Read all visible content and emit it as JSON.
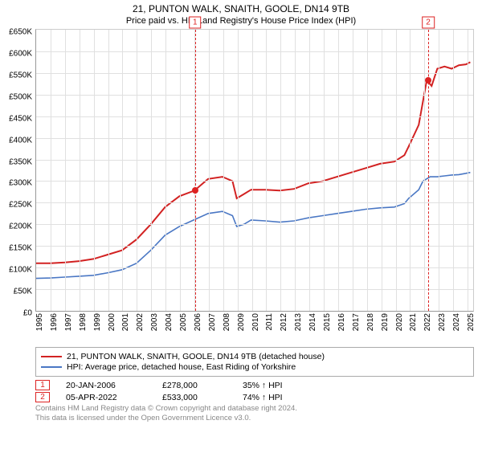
{
  "title": "21, PUNTON WALK, SNAITH, GOOLE, DN14 9TB",
  "subtitle": "Price paid vs. HM Land Registry's House Price Index (HPI)",
  "chart": {
    "type": "line",
    "x_domain": [
      1995,
      2025.5
    ],
    "y_domain": [
      0,
      650000
    ],
    "y_ticks": [
      0,
      50000,
      100000,
      150000,
      200000,
      250000,
      300000,
      350000,
      400000,
      450000,
      500000,
      550000,
      600000,
      650000
    ],
    "y_tick_labels": [
      "£0",
      "£50K",
      "£100K",
      "£150K",
      "£200K",
      "£250K",
      "£300K",
      "£350K",
      "£400K",
      "£450K",
      "£500K",
      "£550K",
      "£600K",
      "£650K"
    ],
    "x_ticks": [
      1995,
      1996,
      1997,
      1998,
      1999,
      2000,
      2001,
      2002,
      2003,
      2004,
      2005,
      2006,
      2007,
      2008,
      2009,
      2010,
      2011,
      2012,
      2013,
      2014,
      2015,
      2016,
      2017,
      2018,
      2019,
      2020,
      2021,
      2022,
      2023,
      2024,
      2025
    ],
    "x_tick_labels": [
      "1995",
      "1996",
      "1997",
      "1998",
      "1999",
      "2000",
      "2001",
      "2002",
      "2003",
      "2004",
      "2005",
      "2006",
      "2007",
      "2008",
      "2009",
      "2010",
      "2011",
      "2012",
      "2013",
      "2014",
      "2015",
      "2016",
      "2017",
      "2018",
      "2019",
      "2020",
      "2021",
      "2022",
      "2023",
      "2024",
      "2025"
    ],
    "grid_color": "#e0e0e0",
    "background_color": "#ffffff",
    "axis_color": "#999999",
    "font_size_ticks": 10,
    "series": [
      {
        "name": "price_paid",
        "label": "21, PUNTON WALK, SNAITH, GOOLE, DN14 9TB (detached house)",
        "color": "#d22222",
        "line_width": 2,
        "points": [
          [
            1995,
            110000
          ],
          [
            1996,
            110000
          ],
          [
            1997,
            112000
          ],
          [
            1998,
            115000
          ],
          [
            1999,
            120000
          ],
          [
            2000,
            130000
          ],
          [
            2001,
            140000
          ],
          [
            2002,
            165000
          ],
          [
            2003,
            200000
          ],
          [
            2004,
            240000
          ],
          [
            2005,
            265000
          ],
          [
            2006.05,
            278000
          ],
          [
            2007,
            305000
          ],
          [
            2008,
            310000
          ],
          [
            2008.7,
            300000
          ],
          [
            2009,
            260000
          ],
          [
            2009.5,
            270000
          ],
          [
            2010,
            280000
          ],
          [
            2011,
            280000
          ],
          [
            2012,
            278000
          ],
          [
            2013,
            282000
          ],
          [
            2014,
            295000
          ],
          [
            2015,
            300000
          ],
          [
            2016,
            310000
          ],
          [
            2017,
            320000
          ],
          [
            2018,
            330000
          ],
          [
            2019,
            340000
          ],
          [
            2020,
            345000
          ],
          [
            2020.7,
            360000
          ],
          [
            2021,
            380000
          ],
          [
            2021.7,
            430000
          ],
          [
            2022.26,
            533000
          ],
          [
            2022.6,
            520000
          ],
          [
            2023,
            560000
          ],
          [
            2023.5,
            565000
          ],
          [
            2024,
            560000
          ],
          [
            2024.5,
            568000
          ],
          [
            2025,
            570000
          ],
          [
            2025.3,
            575000
          ]
        ]
      },
      {
        "name": "hpi",
        "label": "HPI: Average price, detached house, East Riding of Yorkshire",
        "color": "#4a77c4",
        "line_width": 1.6,
        "points": [
          [
            1995,
            75000
          ],
          [
            1996,
            76000
          ],
          [
            1997,
            78000
          ],
          [
            1998,
            80000
          ],
          [
            1999,
            82000
          ],
          [
            2000,
            88000
          ],
          [
            2001,
            95000
          ],
          [
            2002,
            110000
          ],
          [
            2003,
            140000
          ],
          [
            2004,
            175000
          ],
          [
            2005,
            195000
          ],
          [
            2006,
            210000
          ],
          [
            2007,
            225000
          ],
          [
            2008,
            230000
          ],
          [
            2008.7,
            220000
          ],
          [
            2009,
            195000
          ],
          [
            2009.5,
            200000
          ],
          [
            2010,
            210000
          ],
          [
            2011,
            208000
          ],
          [
            2012,
            205000
          ],
          [
            2013,
            208000
          ],
          [
            2014,
            215000
          ],
          [
            2015,
            220000
          ],
          [
            2016,
            225000
          ],
          [
            2017,
            230000
          ],
          [
            2018,
            235000
          ],
          [
            2019,
            238000
          ],
          [
            2020,
            240000
          ],
          [
            2020.7,
            248000
          ],
          [
            2021,
            260000
          ],
          [
            2021.7,
            280000
          ],
          [
            2022,
            300000
          ],
          [
            2022.5,
            310000
          ],
          [
            2023,
            310000
          ],
          [
            2023.5,
            312000
          ],
          [
            2024,
            314000
          ],
          [
            2024.5,
            315000
          ],
          [
            2025,
            318000
          ],
          [
            2025.3,
            320000
          ]
        ]
      }
    ],
    "markers": [
      {
        "id": "1",
        "x": 2006.05,
        "y": 278000
      },
      {
        "id": "2",
        "x": 2022.26,
        "y": 533000
      }
    ]
  },
  "legend": {
    "items": [
      {
        "label": "21, PUNTON WALK, SNAITH, GOOLE, DN14 9TB (detached house)",
        "color": "#d22222"
      },
      {
        "label": "HPI: Average price, detached house, East Riding of Yorkshire",
        "color": "#4a77c4"
      }
    ]
  },
  "marker_table": {
    "rows": [
      {
        "id": "1",
        "date": "20-JAN-2006",
        "price": "£278,000",
        "pct": "35% ↑ HPI"
      },
      {
        "id": "2",
        "date": "05-APR-2022",
        "price": "£533,000",
        "pct": "74% ↑ HPI"
      }
    ]
  },
  "footer": {
    "line1": "Contains HM Land Registry data © Crown copyright and database right 2024.",
    "line2": "This data is licensed under the Open Government Licence v3.0."
  }
}
